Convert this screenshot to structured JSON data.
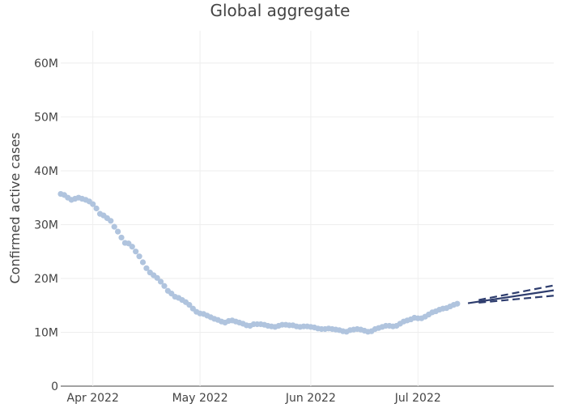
{
  "chart_data": {
    "type": "scatter",
    "title": "Global aggregate",
    "xlabel": "",
    "ylabel": "Confirmed active cases",
    "grid": true,
    "legend": "none",
    "x_ticks": [
      {
        "date": "2022-04-01",
        "label": "Apr 2022"
      },
      {
        "date": "2022-05-01",
        "label": "May 2022"
      },
      {
        "date": "2022-06-01",
        "label": "Jun 2022"
      },
      {
        "date": "2022-07-01",
        "label": "Jul 2022"
      }
    ],
    "y_ticks": [
      {
        "value": 0,
        "label": "0"
      },
      {
        "value": 10000000,
        "label": "10M"
      },
      {
        "value": 20000000,
        "label": "20M"
      },
      {
        "value": 30000000,
        "label": "30M"
      },
      {
        "value": 40000000,
        "label": "40M"
      },
      {
        "value": 50000000,
        "label": "50M"
      },
      {
        "value": 60000000,
        "label": "60M"
      }
    ],
    "xlim": [
      "2022-03-23",
      "2022-08-08"
    ],
    "ylim": [
      0,
      66000000
    ],
    "series": [
      {
        "kind": "observed",
        "color": "#b0c4de",
        "points": [
          [
            "2022-03-23",
            35700000
          ],
          [
            "2022-03-24",
            35500000
          ],
          [
            "2022-03-25",
            35000000
          ],
          [
            "2022-03-26",
            34600000
          ],
          [
            "2022-03-27",
            34800000
          ],
          [
            "2022-03-28",
            35000000
          ],
          [
            "2022-03-29",
            34800000
          ],
          [
            "2022-03-30",
            34600000
          ],
          [
            "2022-03-31",
            34300000
          ],
          [
            "2022-04-01",
            33800000
          ],
          [
            "2022-04-02",
            33000000
          ],
          [
            "2022-04-03",
            32000000
          ],
          [
            "2022-04-04",
            31700000
          ],
          [
            "2022-04-05",
            31200000
          ],
          [
            "2022-04-06",
            30700000
          ],
          [
            "2022-04-07",
            29600000
          ],
          [
            "2022-04-08",
            28700000
          ],
          [
            "2022-04-09",
            27600000
          ],
          [
            "2022-04-10",
            26600000
          ],
          [
            "2022-04-11",
            26500000
          ],
          [
            "2022-04-12",
            25900000
          ],
          [
            "2022-04-13",
            25000000
          ],
          [
            "2022-04-14",
            24100000
          ],
          [
            "2022-04-15",
            23000000
          ],
          [
            "2022-04-16",
            21900000
          ],
          [
            "2022-04-17",
            21100000
          ],
          [
            "2022-04-18",
            20600000
          ],
          [
            "2022-04-19",
            20100000
          ],
          [
            "2022-04-20",
            19400000
          ],
          [
            "2022-04-21",
            18600000
          ],
          [
            "2022-04-22",
            17700000
          ],
          [
            "2022-04-23",
            17200000
          ],
          [
            "2022-04-24",
            16600000
          ],
          [
            "2022-04-25",
            16400000
          ],
          [
            "2022-04-26",
            16000000
          ],
          [
            "2022-04-27",
            15600000
          ],
          [
            "2022-04-28",
            15100000
          ],
          [
            "2022-04-29",
            14400000
          ],
          [
            "2022-04-30",
            13800000
          ],
          [
            "2022-05-01",
            13500000
          ],
          [
            "2022-05-02",
            13400000
          ],
          [
            "2022-05-03",
            13100000
          ],
          [
            "2022-05-04",
            12800000
          ],
          [
            "2022-05-05",
            12500000
          ],
          [
            "2022-05-06",
            12300000
          ],
          [
            "2022-05-07",
            12000000
          ],
          [
            "2022-05-08",
            11800000
          ],
          [
            "2022-05-09",
            12100000
          ],
          [
            "2022-05-10",
            12200000
          ],
          [
            "2022-05-11",
            12000000
          ],
          [
            "2022-05-12",
            11800000
          ],
          [
            "2022-05-13",
            11600000
          ],
          [
            "2022-05-14",
            11300000
          ],
          [
            "2022-05-15",
            11200000
          ],
          [
            "2022-05-16",
            11500000
          ],
          [
            "2022-05-17",
            11500000
          ],
          [
            "2022-05-18",
            11500000
          ],
          [
            "2022-05-19",
            11400000
          ],
          [
            "2022-05-20",
            11200000
          ],
          [
            "2022-05-21",
            11100000
          ],
          [
            "2022-05-22",
            11000000
          ],
          [
            "2022-05-23",
            11200000
          ],
          [
            "2022-05-24",
            11400000
          ],
          [
            "2022-05-25",
            11400000
          ],
          [
            "2022-05-26",
            11300000
          ],
          [
            "2022-05-27",
            11300000
          ],
          [
            "2022-05-28",
            11100000
          ],
          [
            "2022-05-29",
            11000000
          ],
          [
            "2022-05-30",
            11100000
          ],
          [
            "2022-05-31",
            11100000
          ],
          [
            "2022-06-01",
            11000000
          ],
          [
            "2022-06-02",
            10900000
          ],
          [
            "2022-06-03",
            10700000
          ],
          [
            "2022-06-04",
            10600000
          ],
          [
            "2022-06-05",
            10600000
          ],
          [
            "2022-06-06",
            10700000
          ],
          [
            "2022-06-07",
            10600000
          ],
          [
            "2022-06-08",
            10500000
          ],
          [
            "2022-06-09",
            10400000
          ],
          [
            "2022-06-10",
            10200000
          ],
          [
            "2022-06-11",
            10100000
          ],
          [
            "2022-06-12",
            10400000
          ],
          [
            "2022-06-13",
            10500000
          ],
          [
            "2022-06-14",
            10600000
          ],
          [
            "2022-06-15",
            10500000
          ],
          [
            "2022-06-16",
            10300000
          ],
          [
            "2022-06-17",
            10100000
          ],
          [
            "2022-06-18",
            10200000
          ],
          [
            "2022-06-19",
            10600000
          ],
          [
            "2022-06-20",
            10800000
          ],
          [
            "2022-06-21",
            11000000
          ],
          [
            "2022-06-22",
            11200000
          ],
          [
            "2022-06-23",
            11200000
          ],
          [
            "2022-06-24",
            11100000
          ],
          [
            "2022-06-25",
            11200000
          ],
          [
            "2022-06-26",
            11600000
          ],
          [
            "2022-06-27",
            12000000
          ],
          [
            "2022-06-28",
            12200000
          ],
          [
            "2022-06-29",
            12400000
          ],
          [
            "2022-06-30",
            12700000
          ],
          [
            "2022-07-01",
            12600000
          ],
          [
            "2022-07-02",
            12600000
          ],
          [
            "2022-07-03",
            12900000
          ],
          [
            "2022-07-04",
            13300000
          ],
          [
            "2022-07-05",
            13700000
          ],
          [
            "2022-07-06",
            13900000
          ],
          [
            "2022-07-07",
            14200000
          ],
          [
            "2022-07-08",
            14400000
          ],
          [
            "2022-07-09",
            14500000
          ],
          [
            "2022-07-10",
            14800000
          ],
          [
            "2022-07-11",
            15100000
          ],
          [
            "2022-07-12",
            15300000
          ]
        ]
      },
      {
        "kind": "projection",
        "color": "#2e3d6e",
        "center": [
          [
            "2022-07-15",
            15400000
          ],
          [
            "2022-08-08",
            17800000
          ]
        ],
        "upper": [
          [
            "2022-07-18",
            16000000
          ],
          [
            "2022-08-08",
            18700000
          ]
        ],
        "lower": [
          [
            "2022-07-18",
            15500000
          ],
          [
            "2022-08-08",
            16800000
          ]
        ]
      }
    ]
  }
}
